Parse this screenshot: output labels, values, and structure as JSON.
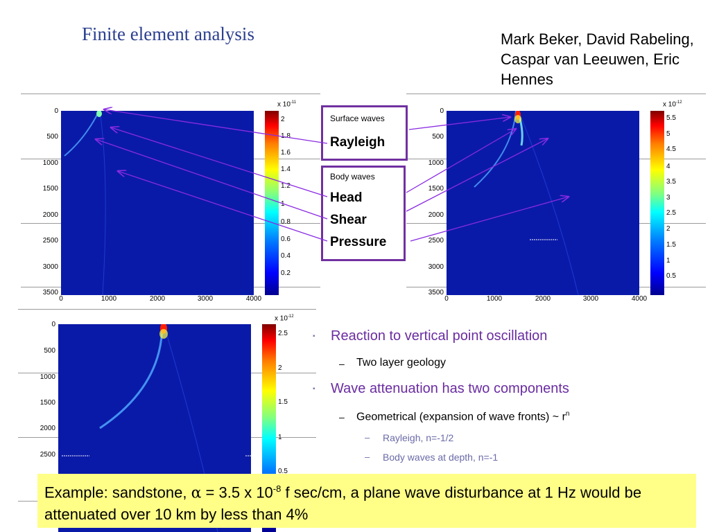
{
  "slide": {
    "title": "Finite element analysis",
    "authors": "Mark Beker, David Rabeling, Caspar van Leeuwen, Eric Hennes"
  },
  "surface_box": {
    "heading": "Surface waves",
    "items": [
      "Rayleigh"
    ]
  },
  "body_box": {
    "heading": "Body waves",
    "items": [
      "Head",
      "Shear",
      "Pressure"
    ]
  },
  "plots": [
    {
      "id": "plot-left-top",
      "y_ticks": [
        "0",
        "500",
        "1000",
        "1500",
        "2000",
        "2500",
        "3000",
        "3500"
      ],
      "x_ticks": [
        "0",
        "1000",
        "2000",
        "3000",
        "4000"
      ],
      "colorbar_exponent_base": "x 10",
      "colorbar_exponent_power": "-11",
      "colorbar_ticks": [
        "2",
        "1.8",
        "1.6",
        "1.4",
        "1.2",
        "1",
        "0.8",
        "0.6",
        "0.4",
        "0.2"
      ]
    },
    {
      "id": "plot-right-top",
      "y_ticks": [
        "0",
        "500",
        "1000",
        "1500",
        "2000",
        "2500",
        "3000",
        "3500"
      ],
      "x_ticks": [
        "0",
        "1000",
        "2000",
        "3000",
        "4000"
      ],
      "colorbar_exponent_base": "x 10",
      "colorbar_exponent_power": "-12",
      "colorbar_ticks": [
        "5.5",
        "5",
        "4.5",
        "4",
        "3.5",
        "3",
        "2.5",
        "2",
        "1.5",
        "1",
        "0.5"
      ]
    },
    {
      "id": "plot-left-bottom",
      "y_ticks": [
        "0",
        "500",
        "1000",
        "1500",
        "2000",
        "2500"
      ],
      "colorbar_exponent_base": "x 10",
      "colorbar_exponent_power": "-12",
      "colorbar_ticks": [
        "2.5",
        "2",
        "1.5",
        "1",
        "0.5"
      ]
    }
  ],
  "bullets": {
    "b1": "Reaction to vertical point oscillation",
    "b1_sub": "Two layer geology",
    "b2": "Wave attenuation has two components",
    "b2_sub": "Geometrical (expansion of wave fronts) ~ r",
    "b2_sub_sup": "n",
    "b2_sub_items": [
      "Rayleigh, n=-1/2",
      "Body waves at depth, n=-1"
    ]
  },
  "example": {
    "part1": "Example: sandstone, ",
    "alpha": "α",
    "part2": " = 3.5 x 10",
    "exponent": "-8",
    "part3": " f sec/cm, a plane wave disturbance at 1 Hz would be attenuated over 10 km by less than 4%"
  },
  "colors": {
    "title": "#2b3f8f",
    "box_border": "#7030a0",
    "bullet": "#6a2ca0",
    "highlight": "#ffff88",
    "arrow": "#8a2be2",
    "field": "#0a1aa8"
  }
}
